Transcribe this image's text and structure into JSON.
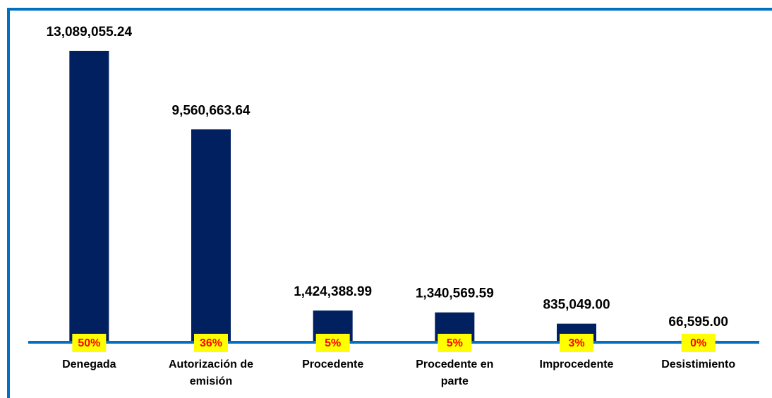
{
  "chart_data": {
    "type": "bar",
    "categories": [
      "Denegada",
      "Autorización de emisión",
      "Procedente",
      "Procedente en parte",
      "Improcedente",
      "Desistimiento"
    ],
    "values": [
      13089055.24,
      9560663.64,
      1424388.99,
      1340569.59,
      835049.0,
      66595.0
    ],
    "value_labels": [
      "13,089,055.24",
      "9,560,663.64",
      "1,424,388.99",
      "1,340,569.59",
      "835,049.00",
      "66,595.00"
    ],
    "share_labels": [
      "50%",
      "36%",
      "5%",
      "5%",
      "3%",
      "0%"
    ],
    "color": "#002060"
  }
}
